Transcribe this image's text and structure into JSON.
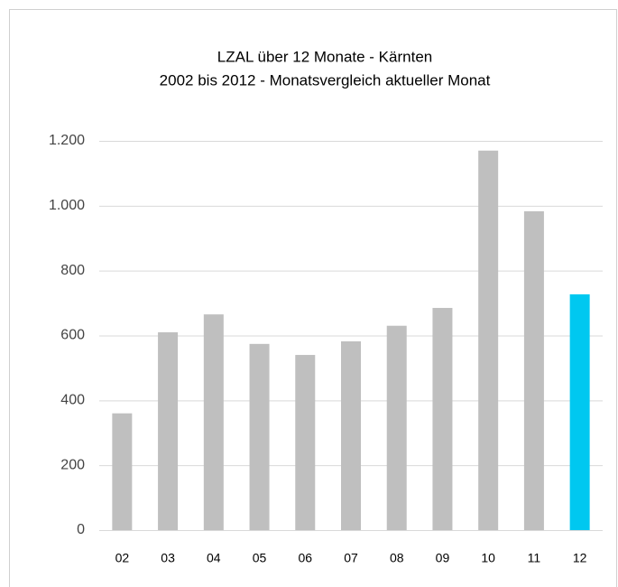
{
  "chart_data": {
    "type": "bar",
    "title": "LZAL über 12 Monate - Kärnten",
    "subtitle": "2002 bis 2012 - Monatsvergleich aktueller Monat",
    "categories": [
      "02",
      "03",
      "04",
      "05",
      "06",
      "07",
      "08",
      "09",
      "10",
      "11",
      "12"
    ],
    "values": [
      360,
      610,
      665,
      574,
      540,
      582,
      630,
      685,
      1170,
      983,
      727
    ],
    "colors": [
      "#bfbfbf",
      "#bfbfbf",
      "#bfbfbf",
      "#bfbfbf",
      "#bfbfbf",
      "#bfbfbf",
      "#bfbfbf",
      "#bfbfbf",
      "#bfbfbf",
      "#bfbfbf",
      "#00c8f0"
    ],
    "ylim": [
      0,
      1200
    ],
    "yticks": [
      0,
      200,
      400,
      600,
      800,
      {
        "value": 1000,
        "label": "1.000"
      },
      {
        "value": 1200,
        "label": "1.200"
      }
    ],
    "grid": true
  }
}
